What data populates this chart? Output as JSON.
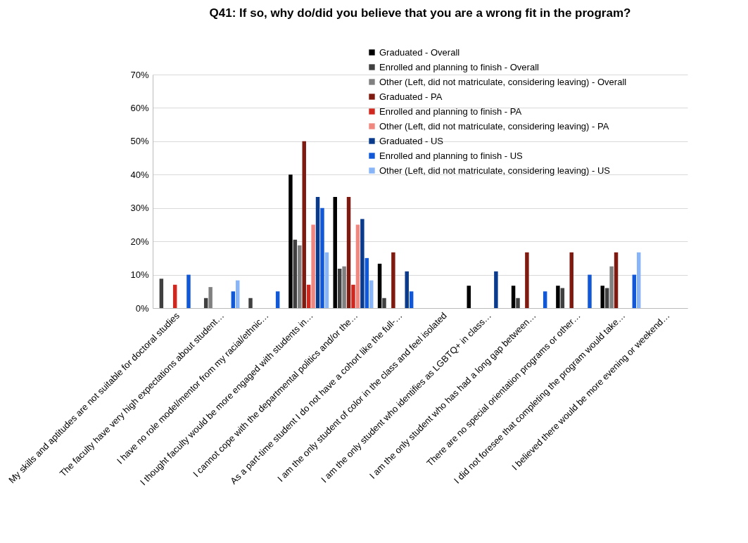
{
  "chart_data": {
    "type": "bar",
    "title": "Q41: If so, why do/did you believe that you are a wrong fit in the program?",
    "categories": [
      "My skills and aptitudes are not suitable for doctoral studies",
      "The faculty have very high expectations about student…",
      "I have no role model/mentor from my racial/ethnic…",
      "I thought faculty would be more engaged with students in…",
      "I cannot cope with the departmental politics and/or the…",
      "As a part-time student I do not have a cohort like the full-…",
      "I am the only student of color in the class and feel isolated",
      "I am the only student who identifies as LGBTQ+ in class…",
      "I am the only student who has had a long gap between…",
      "There are no special orientation programs or other…",
      "I did not foresee that completing the program would take…",
      "I believed there would be more evening or weekend…"
    ],
    "series": [
      {
        "name": "Graduated - Overall",
        "color": "#000000",
        "values": [
          null,
          null,
          null,
          40,
          33.3,
          13.3,
          null,
          6.7,
          6.7,
          6.7,
          6.7,
          null
        ]
      },
      {
        "name": "Enrolled and planning to finish - Overall",
        "color": "#404040",
        "values": [
          8.8,
          3,
          3,
          20.5,
          11.8,
          3,
          null,
          null,
          3,
          6,
          6,
          null
        ]
      },
      {
        "name": "Other (Left, did not matriculate, considering leaving) - Overall",
        "color": "#808080",
        "values": [
          null,
          6.3,
          null,
          18.8,
          12.5,
          null,
          null,
          null,
          null,
          null,
          12.5,
          null
        ]
      },
      {
        "name": "Graduated - PA",
        "color": "#7f1a10",
        "values": [
          null,
          null,
          null,
          50,
          33.3,
          16.7,
          null,
          null,
          16.7,
          16.7,
          16.7,
          null
        ]
      },
      {
        "name": "Enrolled and planning to finish - PA",
        "color": "#d0281e",
        "values": [
          7,
          null,
          null,
          7,
          7,
          null,
          null,
          null,
          null,
          null,
          null,
          null
        ]
      },
      {
        "name": "Other (Left, did not matriculate, considering leaving) - PA",
        "color": "#f08880",
        "values": [
          null,
          null,
          null,
          25,
          25,
          null,
          null,
          null,
          null,
          null,
          null,
          null
        ]
      },
      {
        "name": "Graduated - US",
        "color": "#0a3a8c",
        "values": [
          null,
          null,
          null,
          33.3,
          26.7,
          11,
          null,
          11,
          null,
          null,
          null,
          null
        ]
      },
      {
        "name": "Enrolled and planning to finish - US",
        "color": "#1058d8",
        "values": [
          10,
          5,
          5,
          30,
          15,
          5,
          null,
          null,
          5,
          10,
          10,
          null
        ]
      },
      {
        "name": "Other (Left, did not matriculate, considering leaving) - US",
        "color": "#88b4f8",
        "values": [
          null,
          8.3,
          null,
          16.7,
          8.3,
          null,
          null,
          null,
          null,
          null,
          16.7,
          null
        ]
      }
    ],
    "ylim": [
      0,
      70
    ],
    "yticks": [
      {
        "value": 0,
        "label": "0%"
      },
      {
        "value": 10,
        "label": "10%"
      },
      {
        "value": 20,
        "label": "20%"
      },
      {
        "value": 30,
        "label": "30%"
      },
      {
        "value": 40,
        "label": "40%"
      },
      {
        "value": 50,
        "label": "50%"
      },
      {
        "value": 60,
        "label": "60%"
      },
      {
        "value": 70,
        "label": "70%"
      }
    ],
    "grid": "y",
    "legend": "top right"
  }
}
